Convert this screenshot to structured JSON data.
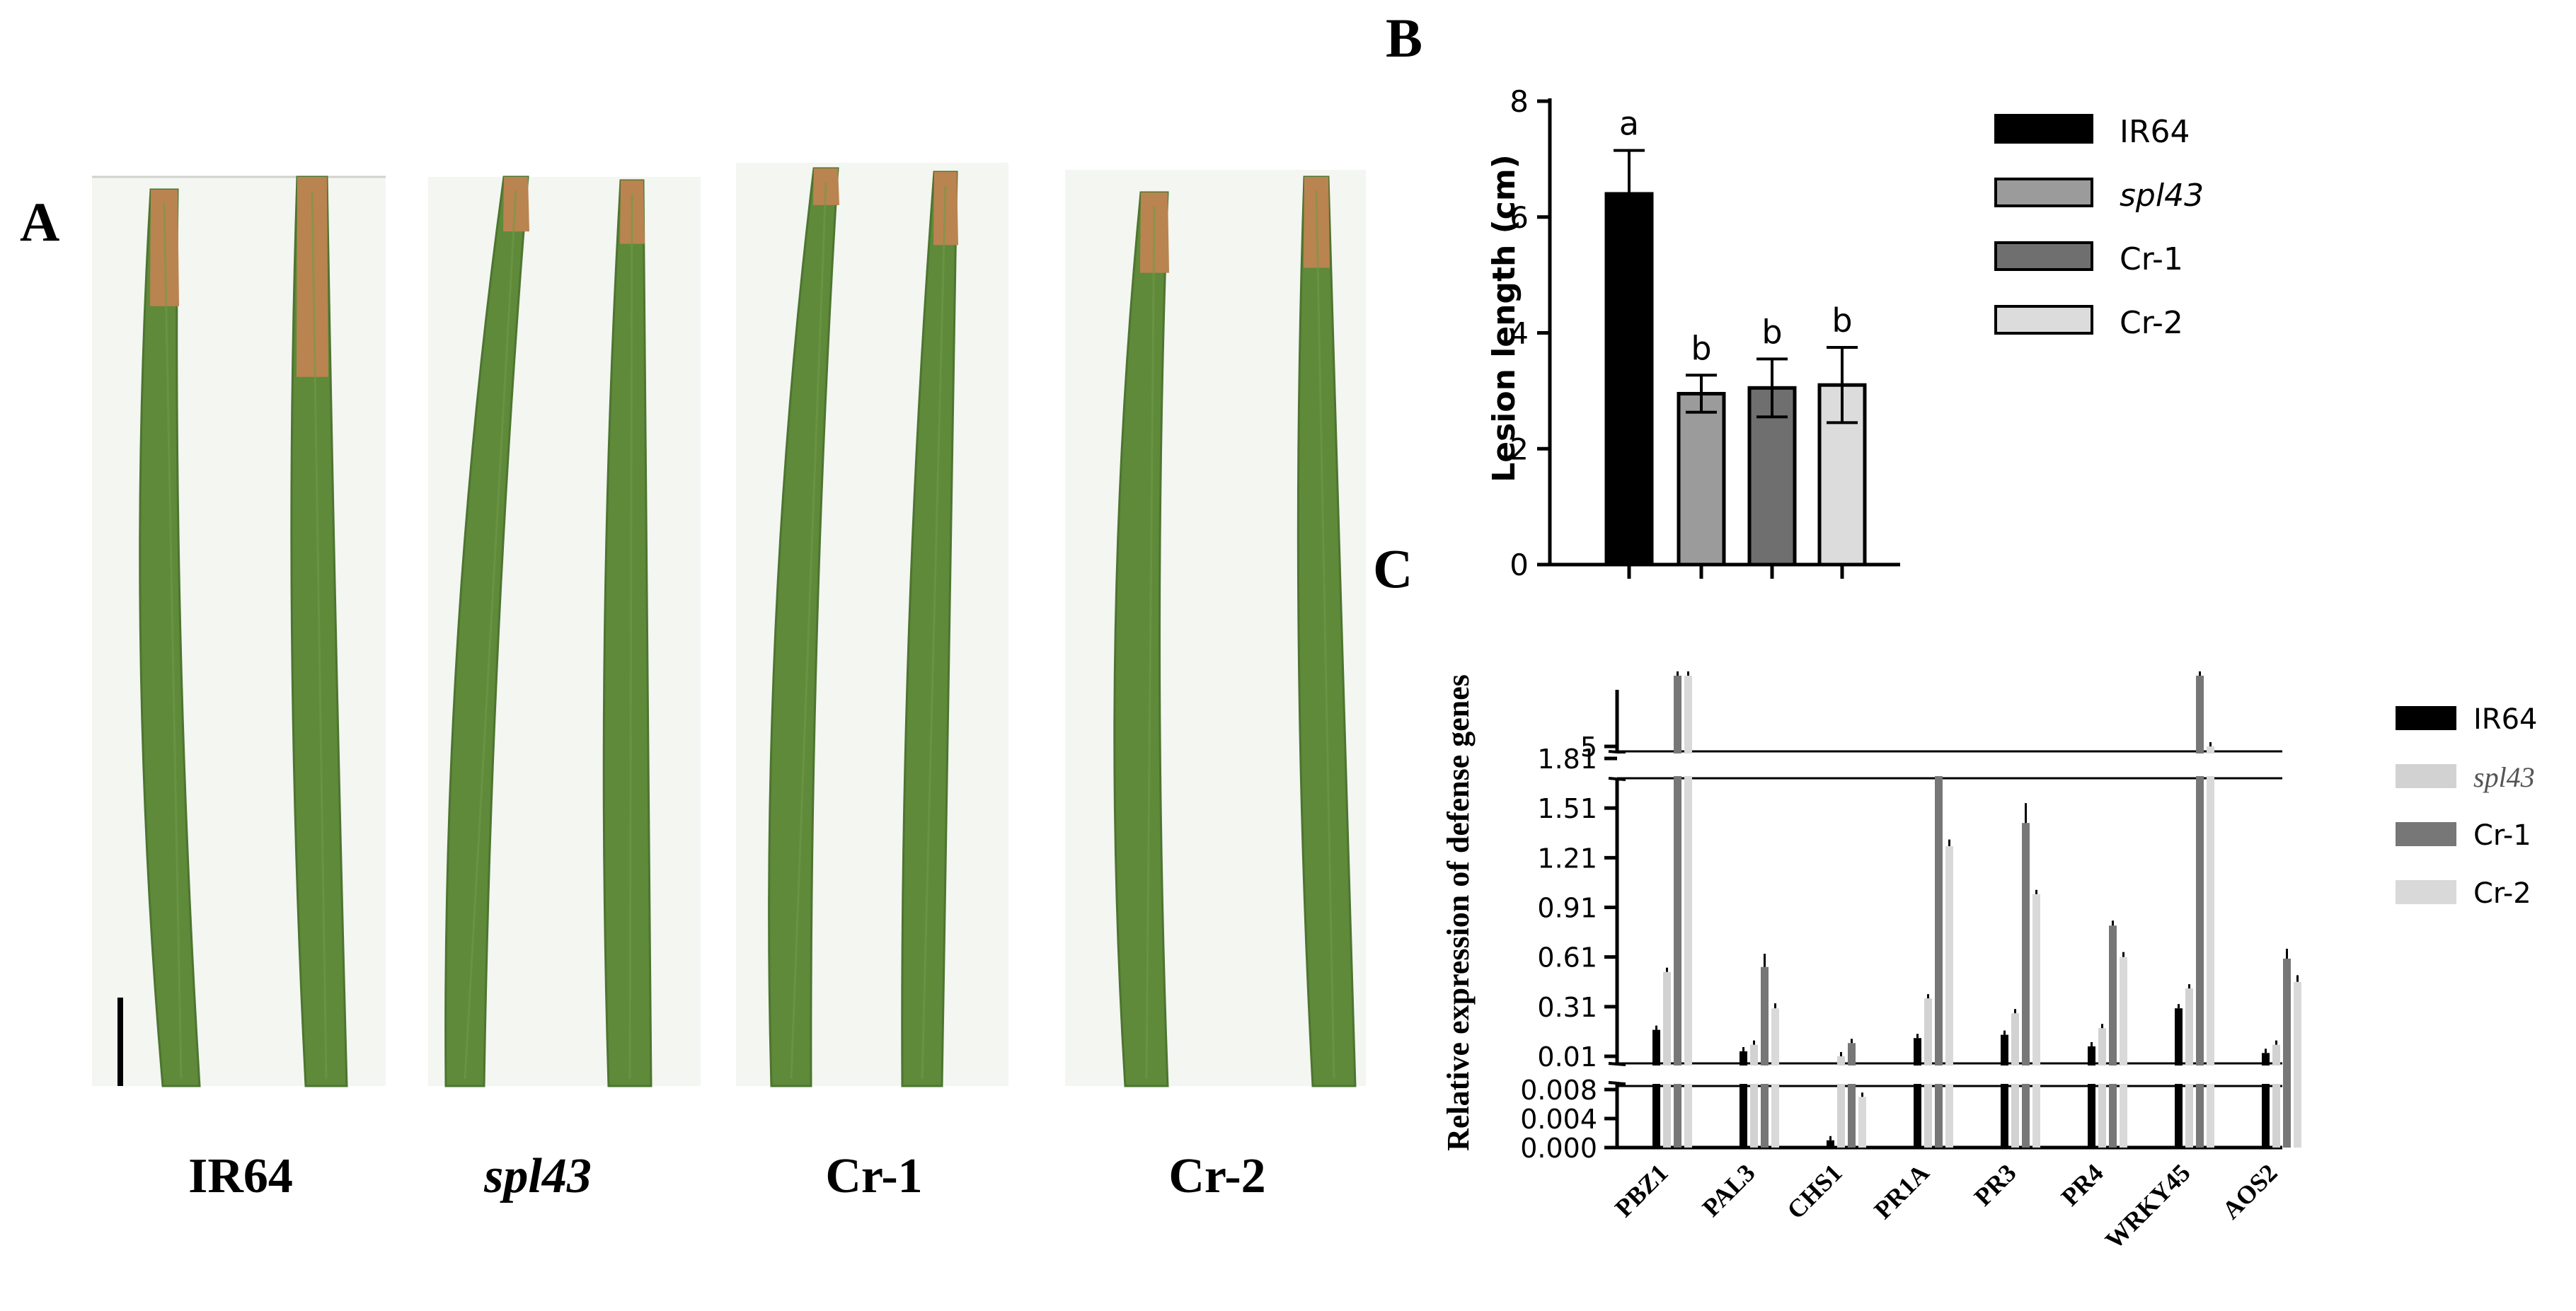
{
  "panels": {
    "A": "A",
    "B": "B",
    "C": "C"
  },
  "panel_a": {
    "labels": [
      "IR64",
      "spl43",
      "Cr-1",
      "Cr-2"
    ],
    "colors": {
      "leaf": "#5e8a3a",
      "leaf_edge": "#4d7530",
      "lesion": "#b98450",
      "background": "#f4f6f2"
    }
  },
  "chart_data": [
    {
      "type": "bar",
      "panel": "B",
      "ylabel": "Lesion length (cm)",
      "xlabel": "",
      "ylim": [
        0,
        8
      ],
      "yticks": [
        0,
        2,
        4,
        6,
        8
      ],
      "categories": [
        "IR64",
        "spl43",
        "Cr-1",
        "Cr-2"
      ],
      "values": [
        6.4,
        2.95,
        3.05,
        3.1
      ],
      "errors": [
        0.75,
        0.32,
        0.5,
        0.65
      ],
      "significance": [
        "a",
        "b",
        "b",
        "b"
      ],
      "colors": [
        "#000000",
        "#9b9b9b",
        "#6f6f6f",
        "#dcdcdc"
      ],
      "legend": {
        "placement": "right",
        "entries": [
          "IR64",
          "spl43",
          "Cr-1",
          "Cr-2"
        ]
      },
      "grid": false
    },
    {
      "type": "bar",
      "panel": "C",
      "ylabel": "Relative expression of defense genes",
      "xlabel": "",
      "categories": [
        "PBZ1",
        "PAL3",
        "CHS1",
        "PR1A",
        "PR3",
        "PR4",
        "WRKY45",
        "AOS2"
      ],
      "axis_breaks": [
        {
          "range": [
            0,
            0.008
          ],
          "ticks": [
            "0.000",
            "0.004",
            "0.008"
          ]
        },
        {
          "range": [
            0.01,
            1.81
          ],
          "ticks": [
            "0.01",
            "0.31",
            "0.61",
            "0.91",
            "1.21",
            "1.51",
            "1.81"
          ]
        },
        {
          "range": [
            5,
            5
          ],
          "ticks": [
            "5"
          ]
        }
      ],
      "series": [
        {
          "name": "IR64",
          "color": "#000000",
          "values": [
            0.17,
            0.04,
            0.001,
            0.12,
            0.14,
            0.07,
            0.3,
            0.03
          ],
          "errors": [
            0.01,
            0.01,
            0.0002,
            0.01,
            0.01,
            0.01,
            0.01,
            0.01
          ]
        },
        {
          "name": "spl43",
          "color": "#d2d2d2",
          "values": [
            0.52,
            0.08,
            0.01,
            0.36,
            0.27,
            0.18,
            0.42,
            0.08
          ],
          "errors": [
            0.01,
            0.01,
            0.002,
            0.02,
            0.02,
            0.01,
            0.02,
            0.01
          ]
        },
        {
          "name": "Cr-1",
          "color": "#777777",
          "values": [
            6.0,
            0.55,
            0.09,
            1.74,
            1.42,
            0.8,
            6.0,
            0.6
          ],
          "errors": [
            0.05,
            0.08,
            0.01,
            0.03,
            0.12,
            0.03,
            0.05,
            0.06
          ]
        },
        {
          "name": "Cr-2",
          "color": "#d9d9d9",
          "values": [
            6.0,
            0.3,
            0.007,
            1.28,
            0.99,
            0.61,
            5.0,
            0.46
          ],
          "errors": [
            0.05,
            0.03,
            0.0005,
            0.04,
            0.02,
            0.03,
            0.05,
            0.04
          ]
        }
      ],
      "legend": {
        "placement": "right",
        "entries": [
          "IR64",
          "spl43",
          "Cr-1",
          "Cr-2"
        ]
      },
      "grid": false
    }
  ]
}
